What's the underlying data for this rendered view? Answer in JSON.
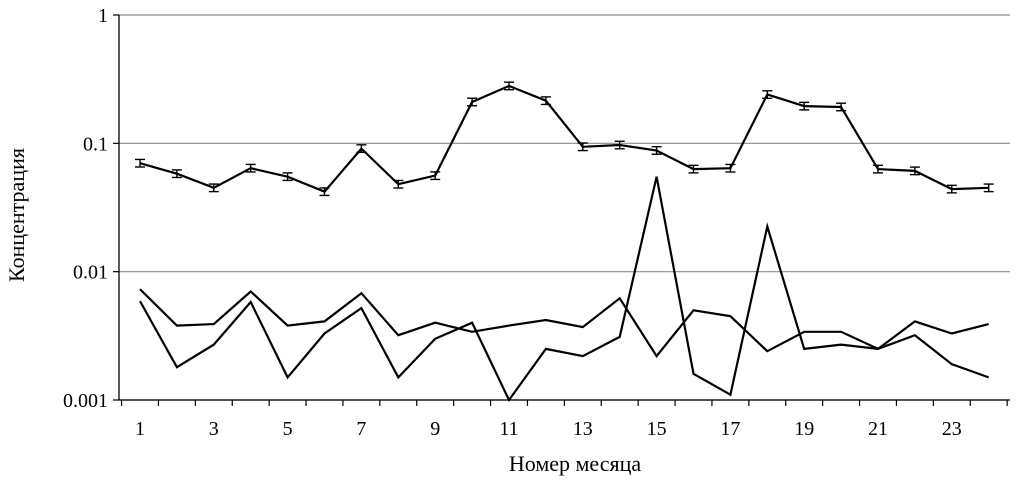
{
  "chart_data": {
    "type": "line",
    "xlabel": "Номер месяца",
    "ylabel": "Концентрация",
    "yscale": "log",
    "ylim": [
      0.001,
      1
    ],
    "xlim": [
      1,
      24
    ],
    "grid": "horizontal",
    "y_ticks": [
      "1",
      "0.1",
      "0.01",
      "0.001"
    ],
    "x_ticks": [
      "1",
      "3",
      "5",
      "7",
      "9",
      "11",
      "13",
      "15",
      "17",
      "19",
      "21",
      "23"
    ],
    "x": [
      1,
      2,
      3,
      4,
      5,
      6,
      7,
      8,
      9,
      10,
      11,
      12,
      13,
      14,
      15,
      16,
      17,
      18,
      19,
      20,
      21,
      22,
      23,
      24
    ],
    "series": [
      {
        "values": [
          0.07,
          0.058,
          0.045,
          0.064,
          0.055,
          0.042,
          0.091,
          0.048,
          0.056,
          0.21,
          0.28,
          0.215,
          0.094,
          0.097,
          0.088,
          0.063,
          0.064,
          0.24,
          0.195,
          0.192,
          0.063,
          0.061,
          0.044,
          0.045
        ],
        "error_bars": true
      },
      {
        "values": [
          0.0073,
          0.0038,
          0.0039,
          0.007,
          0.0038,
          0.0041,
          0.0068,
          0.0032,
          0.004,
          0.0034,
          0.0038,
          0.0042,
          0.0037,
          0.0062,
          0.0022,
          0.005,
          0.0045,
          0.0024,
          0.0034,
          0.0034,
          0.0025,
          0.0041,
          0.0033,
          0.0039
        ]
      },
      {
        "values": [
          0.0059,
          0.0018,
          0.0027,
          0.0058,
          0.0015,
          0.0033,
          0.0052,
          0.0015,
          0.003,
          0.004,
          0.001,
          0.0025,
          0.0022,
          0.0031,
          0.055,
          0.0016,
          0.0011,
          0.0225,
          0.0025,
          0.0027,
          0.0025,
          0.0032,
          0.0019,
          0.0015
        ]
      }
    ]
  }
}
